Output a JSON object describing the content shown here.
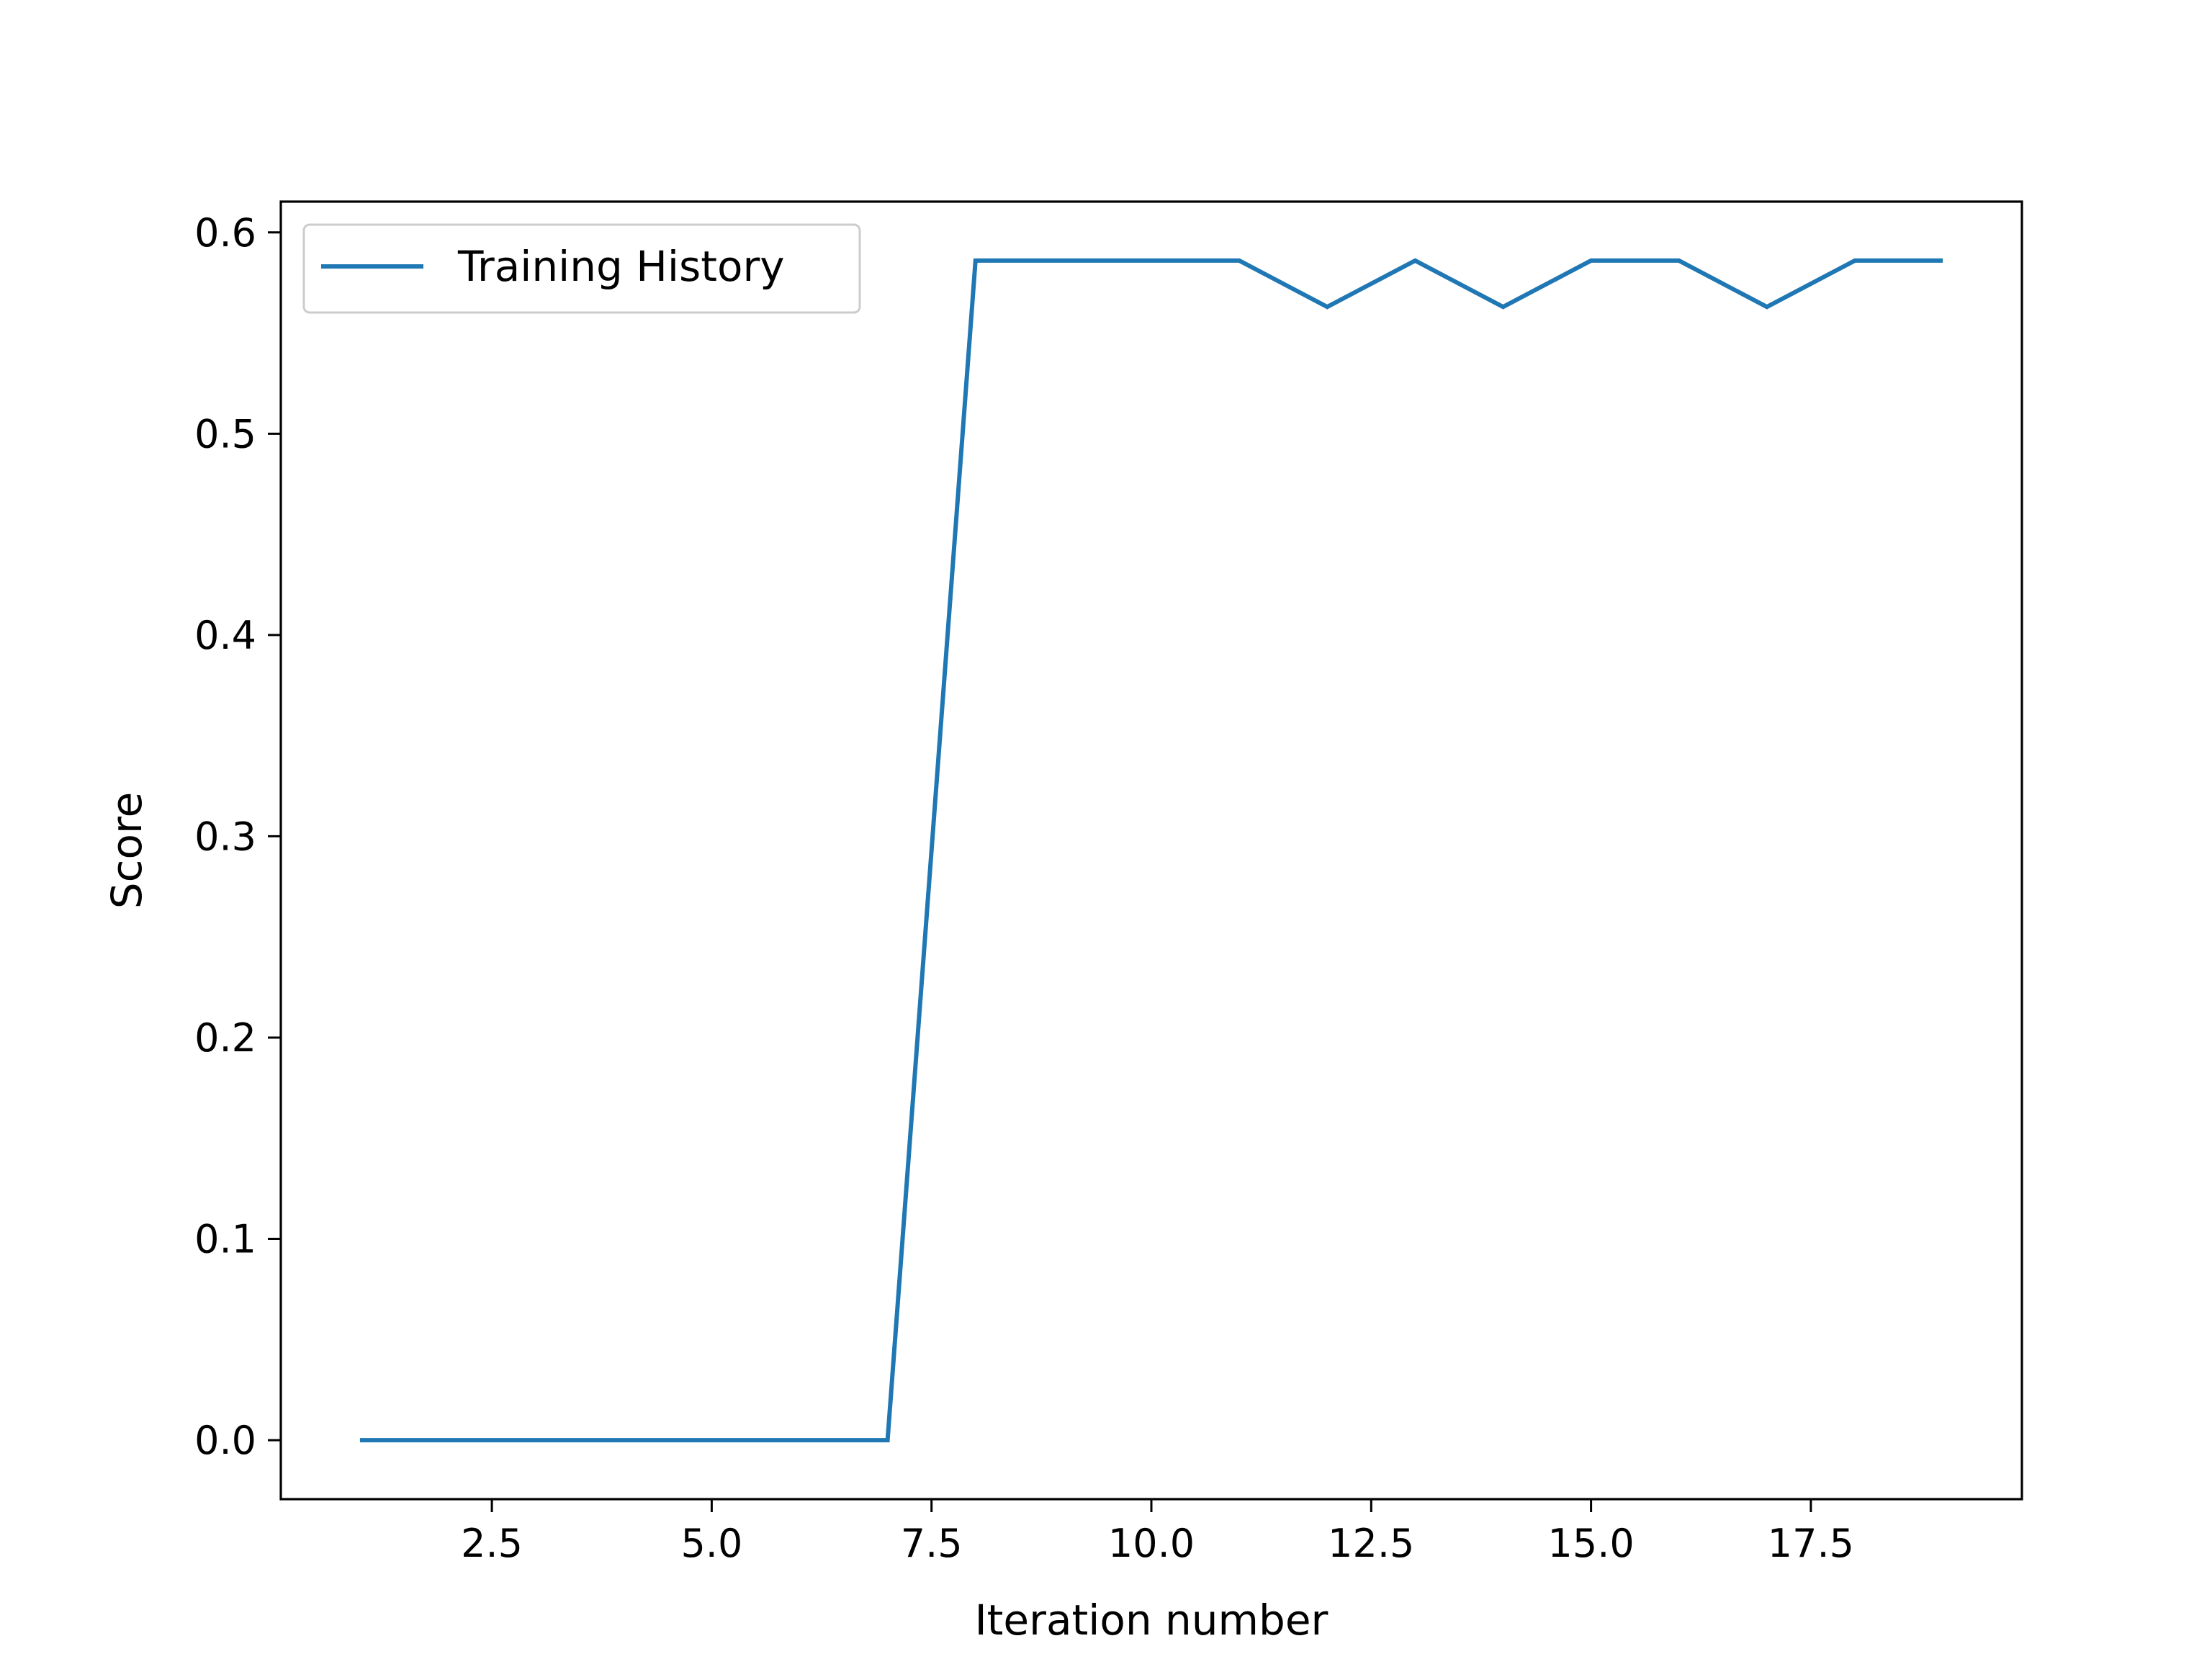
{
  "chart_data": {
    "type": "line",
    "title": "",
    "xlabel": "Iteration number",
    "ylabel": "Score",
    "xlim": [
      0.1,
      19.9
    ],
    "ylim": [
      -0.0293,
      0.6153
    ],
    "xticks": [
      2.5,
      5.0,
      7.5,
      10.0,
      12.5,
      15.0,
      17.5
    ],
    "xtick_labels": [
      "2.5",
      "5.0",
      "7.5",
      "10.0",
      "12.5",
      "15.0",
      "17.5"
    ],
    "yticks": [
      0.0,
      0.1,
      0.2,
      0.3,
      0.4,
      0.5,
      0.6
    ],
    "ytick_labels": [
      "0.0",
      "0.1",
      "0.2",
      "0.3",
      "0.4",
      "0.5",
      "0.6"
    ],
    "grid": false,
    "legend_position": "upper-left",
    "colors": {
      "series": "#1f77b4",
      "axes": "#000000",
      "legend_border": "#cccccc"
    },
    "x": [
      1,
      2,
      3,
      4,
      5,
      6,
      7,
      8,
      9,
      10,
      11,
      12,
      13,
      14,
      15,
      16,
      17,
      18,
      19
    ],
    "series": [
      {
        "name": "Training History",
        "values": [
          0.0,
          0.0,
          0.0,
          0.0,
          0.0,
          0.0,
          0.0,
          0.586,
          0.586,
          0.586,
          0.586,
          0.563,
          0.586,
          0.563,
          0.586,
          0.586,
          0.563,
          0.586,
          0.586
        ]
      }
    ]
  }
}
